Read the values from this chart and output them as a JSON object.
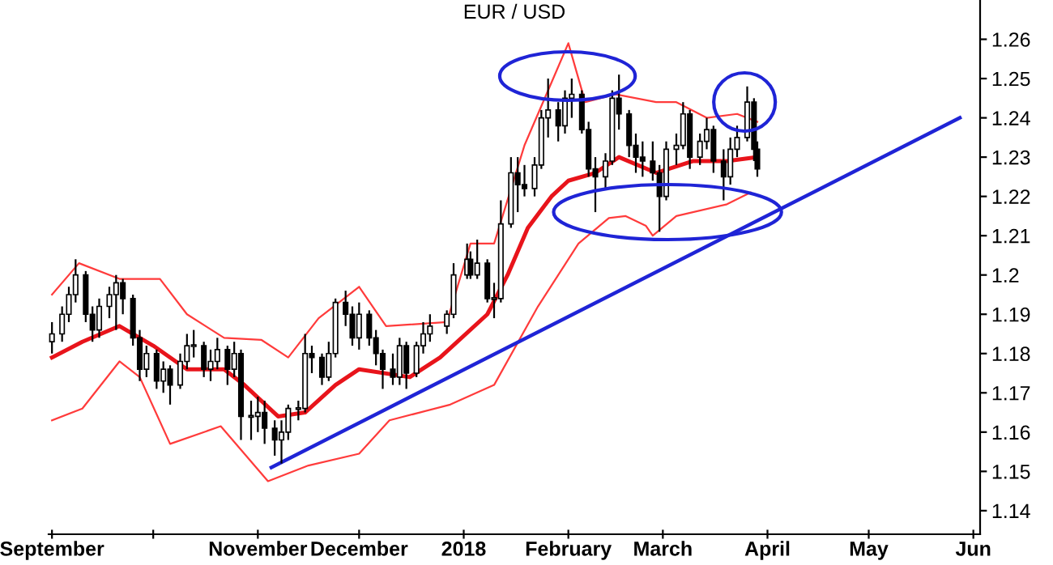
{
  "chart_data": {
    "type": "candlestick",
    "title": "EUR / USD",
    "xlim": [
      "2017-08-31",
      "2018-06-03"
    ],
    "xticks": [
      {
        "value": "2017-09-01",
        "label": "September"
      },
      {
        "value": "2017-10-01",
        "label": null
      },
      {
        "value": "2017-11-01",
        "label": "November"
      },
      {
        "value": "2017-12-01",
        "label": "December"
      },
      {
        "value": "2018-01-01",
        "label": "2018"
      },
      {
        "value": "2018-02-01",
        "label": "February"
      },
      {
        "value": "2018-03-01",
        "label": "March"
      },
      {
        "value": "2018-04-01",
        "label": "April"
      },
      {
        "value": "2018-05-01",
        "label": "May"
      },
      {
        "value": "2018-06-01",
        "label": "Jun"
      }
    ],
    "ylim": [
      1.134,
      1.27
    ],
    "yticks": [
      1.14,
      1.15,
      1.16,
      1.17,
      1.18,
      1.19,
      1.2,
      1.21,
      1.22,
      1.23,
      1.24,
      1.25,
      1.26
    ],
    "grid": false,
    "legend": false,
    "series": [
      {
        "type": "line",
        "color": "#ff3b3b",
        "x": [
          "2017-09-01",
          "2017-09-09",
          "2017-09-21",
          "2017-10-03",
          "2017-10-11",
          "2017-10-22",
          "2017-11-02",
          "2017-11-10",
          "2017-11-19",
          "2017-12-01",
          "2017-12-09",
          "2017-12-27",
          "2018-01-03",
          "2018-01-10",
          "2018-01-19",
          "2018-01-28",
          "2018-02-01",
          "2018-02-06",
          "2018-02-15",
          "2018-02-27",
          "2018-03-05",
          "2018-03-14",
          "2018-03-23",
          "2018-03-29"
        ],
        "values": [
          1.195,
          1.203,
          1.199,
          1.199,
          1.19,
          1.184,
          1.1835,
          1.179,
          1.189,
          1.197,
          1.187,
          1.188,
          1.208,
          1.208,
          1.233,
          1.251,
          1.259,
          1.244,
          1.246,
          1.244,
          1.244,
          1.24,
          1.241,
          1.239
        ]
      },
      {
        "type": "line",
        "color": "#ff3b3b",
        "x": [
          "2017-09-01",
          "2017-09-10",
          "2017-09-21",
          "2017-09-27",
          "2017-10-06",
          "2017-10-21",
          "2017-11-04",
          "2017-11-16",
          "2017-12-01",
          "2017-12-10",
          "2017-12-28",
          "2018-01-10",
          "2018-01-23",
          "2018-02-04",
          "2018-02-13",
          "2018-02-18",
          "2018-02-24",
          "2018-02-26",
          "2018-03-05",
          "2018-03-20",
          "2018-03-27"
        ],
        "values": [
          1.163,
          1.166,
          1.178,
          1.174,
          1.157,
          1.1615,
          1.1475,
          1.1515,
          1.1545,
          1.163,
          1.167,
          1.172,
          1.192,
          1.208,
          1.2145,
          1.215,
          1.2125,
          1.21,
          1.215,
          1.218,
          1.221
        ]
      },
      {
        "type": "line",
        "color": "#e8141b",
        "x": [
          "2017-09-01",
          "2017-09-10",
          "2017-09-21",
          "2017-10-01",
          "2017-10-11",
          "2017-10-22",
          "2017-10-28",
          "2017-11-07",
          "2017-11-15",
          "2017-11-24",
          "2017-12-01",
          "2017-12-16",
          "2017-12-25",
          "2018-01-08",
          "2018-01-14",
          "2018-01-20",
          "2018-01-27",
          "2018-02-01",
          "2018-02-09",
          "2018-02-16",
          "2018-02-27",
          "2018-03-10",
          "2018-03-20",
          "2018-03-29"
        ],
        "values": [
          1.179,
          1.183,
          1.187,
          1.182,
          1.176,
          1.176,
          1.172,
          1.164,
          1.165,
          1.172,
          1.176,
          1.174,
          1.179,
          1.19,
          1.2,
          1.212,
          1.22,
          1.224,
          1.226,
          1.23,
          1.226,
          1.229,
          1.229,
          1.23
        ]
      },
      {
        "type": "line",
        "color": "#1f24d6",
        "x": [
          "2017-11-05",
          "2018-05-28"
        ],
        "values": [
          1.151,
          1.24
        ]
      },
      {
        "x": [
          "2017-09-01",
          "2017-09-04",
          "2017-09-06",
          "2017-09-08",
          "2017-09-11",
          "2017-09-13",
          "2017-09-15",
          "2017-09-18",
          "2017-09-20",
          "2017-09-22",
          "2017-09-25",
          "2017-09-27",
          "2017-09-29",
          "2017-10-02",
          "2017-10-04",
          "2017-10-06",
          "2017-10-09",
          "2017-10-11",
          "2017-10-13",
          "2017-10-16",
          "2017-10-18",
          "2017-10-20",
          "2017-10-23",
          "2017-10-25",
          "2017-10-27",
          "2017-10-30",
          "2017-11-01",
          "2017-11-03",
          "2017-11-06",
          "2017-11-08",
          "2017-11-10",
          "2017-11-13",
          "2017-11-15",
          "2017-11-17",
          "2017-11-20",
          "2017-11-22",
          "2017-11-24",
          "2017-11-27",
          "2017-11-29",
          "2017-12-01",
          "2017-12-04",
          "2017-12-06",
          "2017-12-08",
          "2017-12-11",
          "2017-12-13",
          "2017-12-15",
          "2017-12-18",
          "2017-12-20",
          "2017-12-22",
          "2017-12-27",
          "2017-12-29",
          "2018-01-02",
          "2018-01-03",
          "2018-01-05",
          "2018-01-08",
          "2018-01-10",
          "2018-01-12",
          "2018-01-15",
          "2018-01-17",
          "2018-01-19",
          "2018-01-22",
          "2018-01-24",
          "2018-01-26",
          "2018-01-29",
          "2018-01-31",
          "2018-02-02",
          "2018-02-05",
          "2018-02-07",
          "2018-02-09",
          "2018-02-12",
          "2018-02-14",
          "2018-02-16",
          "2018-02-19",
          "2018-02-21",
          "2018-02-23",
          "2018-02-26",
          "2018-02-28",
          "2018-03-02",
          "2018-03-05",
          "2018-03-07",
          "2018-03-09",
          "2018-03-12",
          "2018-03-14",
          "2018-03-16",
          "2018-03-19",
          "2018-03-21",
          "2018-03-23",
          "2018-03-26",
          "2018-03-28",
          "2018-03-29"
        ],
        "ohlc": [
          [
            1.183,
            1.188,
            1.18,
            1.185
          ],
          [
            1.185,
            1.192,
            1.183,
            1.19
          ],
          [
            1.19,
            1.197,
            1.188,
            1.195
          ],
          [
            1.195,
            1.204,
            1.193,
            1.2
          ],
          [
            1.2,
            1.201,
            1.188,
            1.19
          ],
          [
            1.19,
            1.192,
            1.183,
            1.186
          ],
          [
            1.186,
            1.194,
            1.184,
            1.192
          ],
          [
            1.192,
            1.197,
            1.189,
            1.195
          ],
          [
            1.195,
            1.2,
            1.186,
            1.198
          ],
          [
            1.198,
            1.199,
            1.19,
            1.194
          ],
          [
            1.194,
            1.195,
            1.182,
            1.184
          ],
          [
            1.184,
            1.186,
            1.173,
            1.176
          ],
          [
            1.176,
            1.182,
            1.174,
            1.18
          ],
          [
            1.18,
            1.181,
            1.171,
            1.173
          ],
          [
            1.173,
            1.178,
            1.17,
            1.176
          ],
          [
            1.176,
            1.177,
            1.167,
            1.172
          ],
          [
            1.172,
            1.18,
            1.171,
            1.178
          ],
          [
            1.178,
            1.185,
            1.176,
            1.182
          ],
          [
            1.182,
            1.186,
            1.179,
            1.182
          ],
          [
            1.182,
            1.183,
            1.174,
            1.176
          ],
          [
            1.176,
            1.181,
            1.173,
            1.178
          ],
          [
            1.178,
            1.184,
            1.176,
            1.181
          ],
          [
            1.181,
            1.182,
            1.172,
            1.176
          ],
          [
            1.176,
            1.183,
            1.174,
            1.18
          ],
          [
            1.18,
            1.181,
            1.158,
            1.164
          ],
          [
            1.164,
            1.168,
            1.158,
            1.164
          ],
          [
            1.164,
            1.169,
            1.16,
            1.165
          ],
          [
            1.165,
            1.168,
            1.157,
            1.161
          ],
          [
            1.161,
            1.163,
            1.154,
            1.158
          ],
          [
            1.158,
            1.163,
            1.152,
            1.16
          ],
          [
            1.16,
            1.167,
            1.158,
            1.166
          ],
          [
            1.166,
            1.168,
            1.163,
            1.166
          ],
          [
            1.166,
            1.185,
            1.165,
            1.18
          ],
          [
            1.18,
            1.182,
            1.175,
            1.179
          ],
          [
            1.179,
            1.18,
            1.172,
            1.174
          ],
          [
            1.174,
            1.183,
            1.173,
            1.18
          ],
          [
            1.18,
            1.194,
            1.179,
            1.193
          ],
          [
            1.193,
            1.196,
            1.187,
            1.19
          ],
          [
            1.19,
            1.192,
            1.182,
            1.184
          ],
          [
            1.184,
            1.193,
            1.181,
            1.19
          ],
          [
            1.19,
            1.191,
            1.182,
            1.184
          ],
          [
            1.184,
            1.186,
            1.177,
            1.18
          ],
          [
            1.18,
            1.181,
            1.171,
            1.176
          ],
          [
            1.176,
            1.18,
            1.172,
            1.174
          ],
          [
            1.174,
            1.184,
            1.172,
            1.182
          ],
          [
            1.182,
            1.183,
            1.171,
            1.175
          ],
          [
            1.175,
            1.183,
            1.174,
            1.182
          ],
          [
            1.182,
            1.188,
            1.18,
            1.185
          ],
          [
            1.185,
            1.19,
            1.183,
            1.187
          ],
          [
            1.187,
            1.191,
            1.185,
            1.19
          ],
          [
            1.19,
            1.203,
            1.189,
            1.2
          ],
          [
            1.2,
            1.208,
            1.199,
            1.204
          ],
          [
            1.204,
            1.206,
            1.199,
            1.2
          ],
          [
            1.2,
            1.209,
            1.199,
            1.203
          ],
          [
            1.203,
            1.204,
            1.193,
            1.194
          ],
          [
            1.194,
            1.198,
            1.189,
            1.194
          ],
          [
            1.194,
            1.219,
            1.193,
            1.213
          ],
          [
            1.213,
            1.23,
            1.212,
            1.226
          ],
          [
            1.226,
            1.23,
            1.216,
            1.223
          ],
          [
            1.223,
            1.228,
            1.22,
            1.222
          ],
          [
            1.222,
            1.23,
            1.22,
            1.228
          ],
          [
            1.228,
            1.242,
            1.227,
            1.24
          ],
          [
            1.24,
            1.25,
            1.235,
            1.242
          ],
          [
            1.242,
            1.244,
            1.234,
            1.238
          ],
          [
            1.238,
            1.247,
            1.236,
            1.245
          ],
          [
            1.245,
            1.25,
            1.24,
            1.246
          ],
          [
            1.246,
            1.247,
            1.236,
            1.237
          ],
          [
            1.237,
            1.239,
            1.225,
            1.227
          ],
          [
            1.227,
            1.23,
            1.216,
            1.225
          ],
          [
            1.225,
            1.231,
            1.222,
            1.229
          ],
          [
            1.229,
            1.247,
            1.228,
            1.245
          ],
          [
            1.245,
            1.251,
            1.237,
            1.241
          ],
          [
            1.241,
            1.242,
            1.23,
            1.233
          ],
          [
            1.233,
            1.236,
            1.226,
            1.23
          ],
          [
            1.23,
            1.234,
            1.225,
            1.229
          ],
          [
            1.229,
            1.234,
            1.224,
            1.226
          ],
          [
            1.226,
            1.228,
            1.211,
            1.22
          ],
          [
            1.22,
            1.234,
            1.219,
            1.232
          ],
          [
            1.232,
            1.236,
            1.228,
            1.233
          ],
          [
            1.233,
            1.244,
            1.232,
            1.241
          ],
          [
            1.241,
            1.242,
            1.227,
            1.23
          ],
          [
            1.23,
            1.236,
            1.228,
            1.234
          ],
          [
            1.234,
            1.24,
            1.232,
            1.237
          ],
          [
            1.237,
            1.238,
            1.226,
            1.229
          ],
          [
            1.229,
            1.232,
            1.219,
            1.225
          ],
          [
            1.225,
            1.235,
            1.223,
            1.232
          ],
          [
            1.232,
            1.238,
            1.23,
            1.235
          ],
          [
            1.235,
            1.248,
            1.234,
            1.244
          ],
          [
            1.244,
            1.245,
            1.229,
            1.232
          ],
          [
            1.232,
            1.234,
            1.225,
            1.227
          ]
        ]
      }
    ]
  }
}
